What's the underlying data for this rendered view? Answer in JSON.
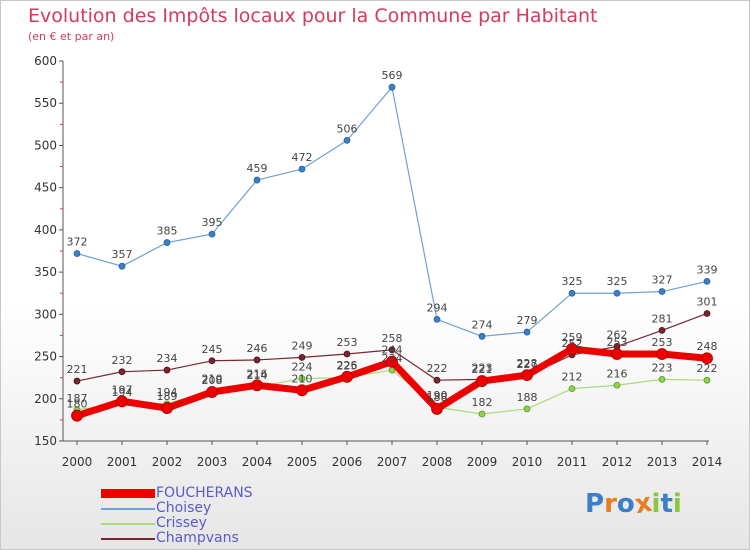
{
  "chart_data": {
    "type": "line",
    "title": "Evolution des Impôts locaux pour la Commune par Habitant",
    "subtitle": "(en € et par an)",
    "xlabel": "",
    "ylabel": "",
    "ylim": [
      150,
      600
    ],
    "yticks": [
      "150",
      "200",
      "250",
      "300",
      "350",
      "400",
      "450",
      "500",
      "550",
      "600"
    ],
    "x": [
      "2000",
      "2001",
      "2002",
      "2003",
      "2004",
      "2005",
      "2006",
      "2007",
      "2008",
      "2009",
      "2010",
      "2011",
      "2012",
      "2013",
      "2014"
    ],
    "grid": false,
    "legend": "bottom-left",
    "series": [
      {
        "name": "Champvans",
        "color": "#7a2630",
        "values": [
          221,
          232,
          234,
          245,
          246,
          249,
          253,
          258,
          222,
          223,
          227,
          252,
          262,
          281,
          301
        ]
      },
      {
        "name": "Choisey",
        "color": "#6fa0d0",
        "values": [
          372,
          357,
          385,
          395,
          459,
          472,
          506,
          569,
          294,
          274,
          279,
          325,
          325,
          327,
          339
        ]
      },
      {
        "name": "Crissey",
        "color": "#a8dc78",
        "values": [
          187,
          194,
          194,
          210,
          214,
          224,
          225,
          234,
          190,
          182,
          188,
          212,
          216,
          223,
          222
        ]
      },
      {
        "name": "FOUCHERANS",
        "color": "#ee0000",
        "values": [
          180,
          197,
          189,
          208,
          216,
          210,
          226,
          244,
          188,
          221,
          228,
          259,
          253,
          253,
          248
        ]
      }
    ],
    "legend_entries": [
      "FOUCHERANS",
      "Choisey",
      "Crissey",
      "Champvans"
    ]
  },
  "logo": {
    "letters": [
      "P",
      "r",
      "o",
      "x",
      "i",
      "t",
      "i"
    ],
    "colors": [
      "#3a7fc8",
      "#e87d1e",
      "#3a7fc8",
      "#e87d1e",
      "#8cc63f",
      "#3a7fc8",
      "#8cc63f"
    ]
  }
}
